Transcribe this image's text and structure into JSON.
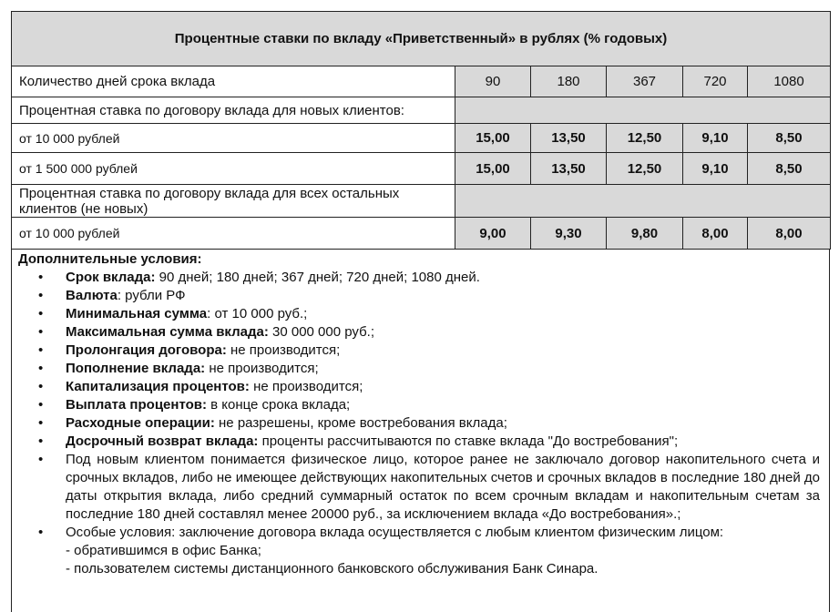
{
  "title": "Процентные ставки по вкладу «Приветственный» в рублях (% годовых)",
  "days_label": "Количество дней срока вклада",
  "terms": [
    "90",
    "180",
    "367",
    "720",
    "1080"
  ],
  "groups": [
    {
      "label": "Процентная ставка по договору вклада для новых клиентов:",
      "rows": [
        {
          "label": "от 10 000 рублей",
          "values": [
            "15,00",
            "13,50",
            "12,50",
            "9,10",
            "8,50"
          ]
        },
        {
          "label": "от 1 500 000 рублей",
          "values": [
            "15,00",
            "13,50",
            "12,50",
            "9,10",
            "8,50"
          ]
        }
      ]
    },
    {
      "label": "Процентная ставка по договору вклада для всех остальных клиентов (не новых)",
      "rows": [
        {
          "label": "от 10 000 рублей",
          "values": [
            "9,00",
            "9,30",
            "9,80",
            "8,00",
            "8,00"
          ]
        }
      ]
    }
  ],
  "conditions": {
    "heading": "Дополнительные условия:",
    "items": [
      {
        "key": "Срок вклада:",
        "text": " 90 дней; 180 дней; 367 дней; 720 дней; 1080 дней."
      },
      {
        "key": "Валюта",
        "text": ": рубли РФ"
      },
      {
        "key": "Минимальная сумма",
        "text": ": от 10 000 руб.;"
      },
      {
        "key": "Максимальная сумма вклада:",
        "text": " 30 000 000 руб.;"
      },
      {
        "key": "Пролонгация договора:",
        "text": " не производится;"
      },
      {
        "key": "Пополнение вклада:",
        "text": " не производится;"
      },
      {
        "key": "Капитализация процентов:",
        "text": " не производится;"
      },
      {
        "key": "Выплата процентов:",
        "text": " в конце срока вклада;"
      },
      {
        "key": "Расходные операции:",
        "text": " не разрешены, кроме востребования вклада;"
      },
      {
        "key": "Досрочный возврат вклада:",
        "text": " проценты рассчитываются по ставке вклада \"До востребования\";"
      },
      {
        "key": "",
        "text": "Под новым клиентом понимается физическое лицо, которое ранее не заключало договор накопительного счета и срочных вкладов, либо не имеющее действующих накопительных счетов и срочных вкладов в последние 180 дней до даты открытия вклада, либо средний суммарный остаток по всем срочным вкладам и накопительным счетам за последние 180 дней составлял менее 20000 руб., за исключением вклада «До востребования».;"
      }
    ],
    "special": {
      "text": "Особые условия: заключение договора вклада осуществляется с любым клиентом физическим лицом:",
      "lines": [
        "- обратившимся в офис Банка;",
        "- пользователем системы дистанционного банковского обслуживания Банк Синара."
      ]
    }
  }
}
